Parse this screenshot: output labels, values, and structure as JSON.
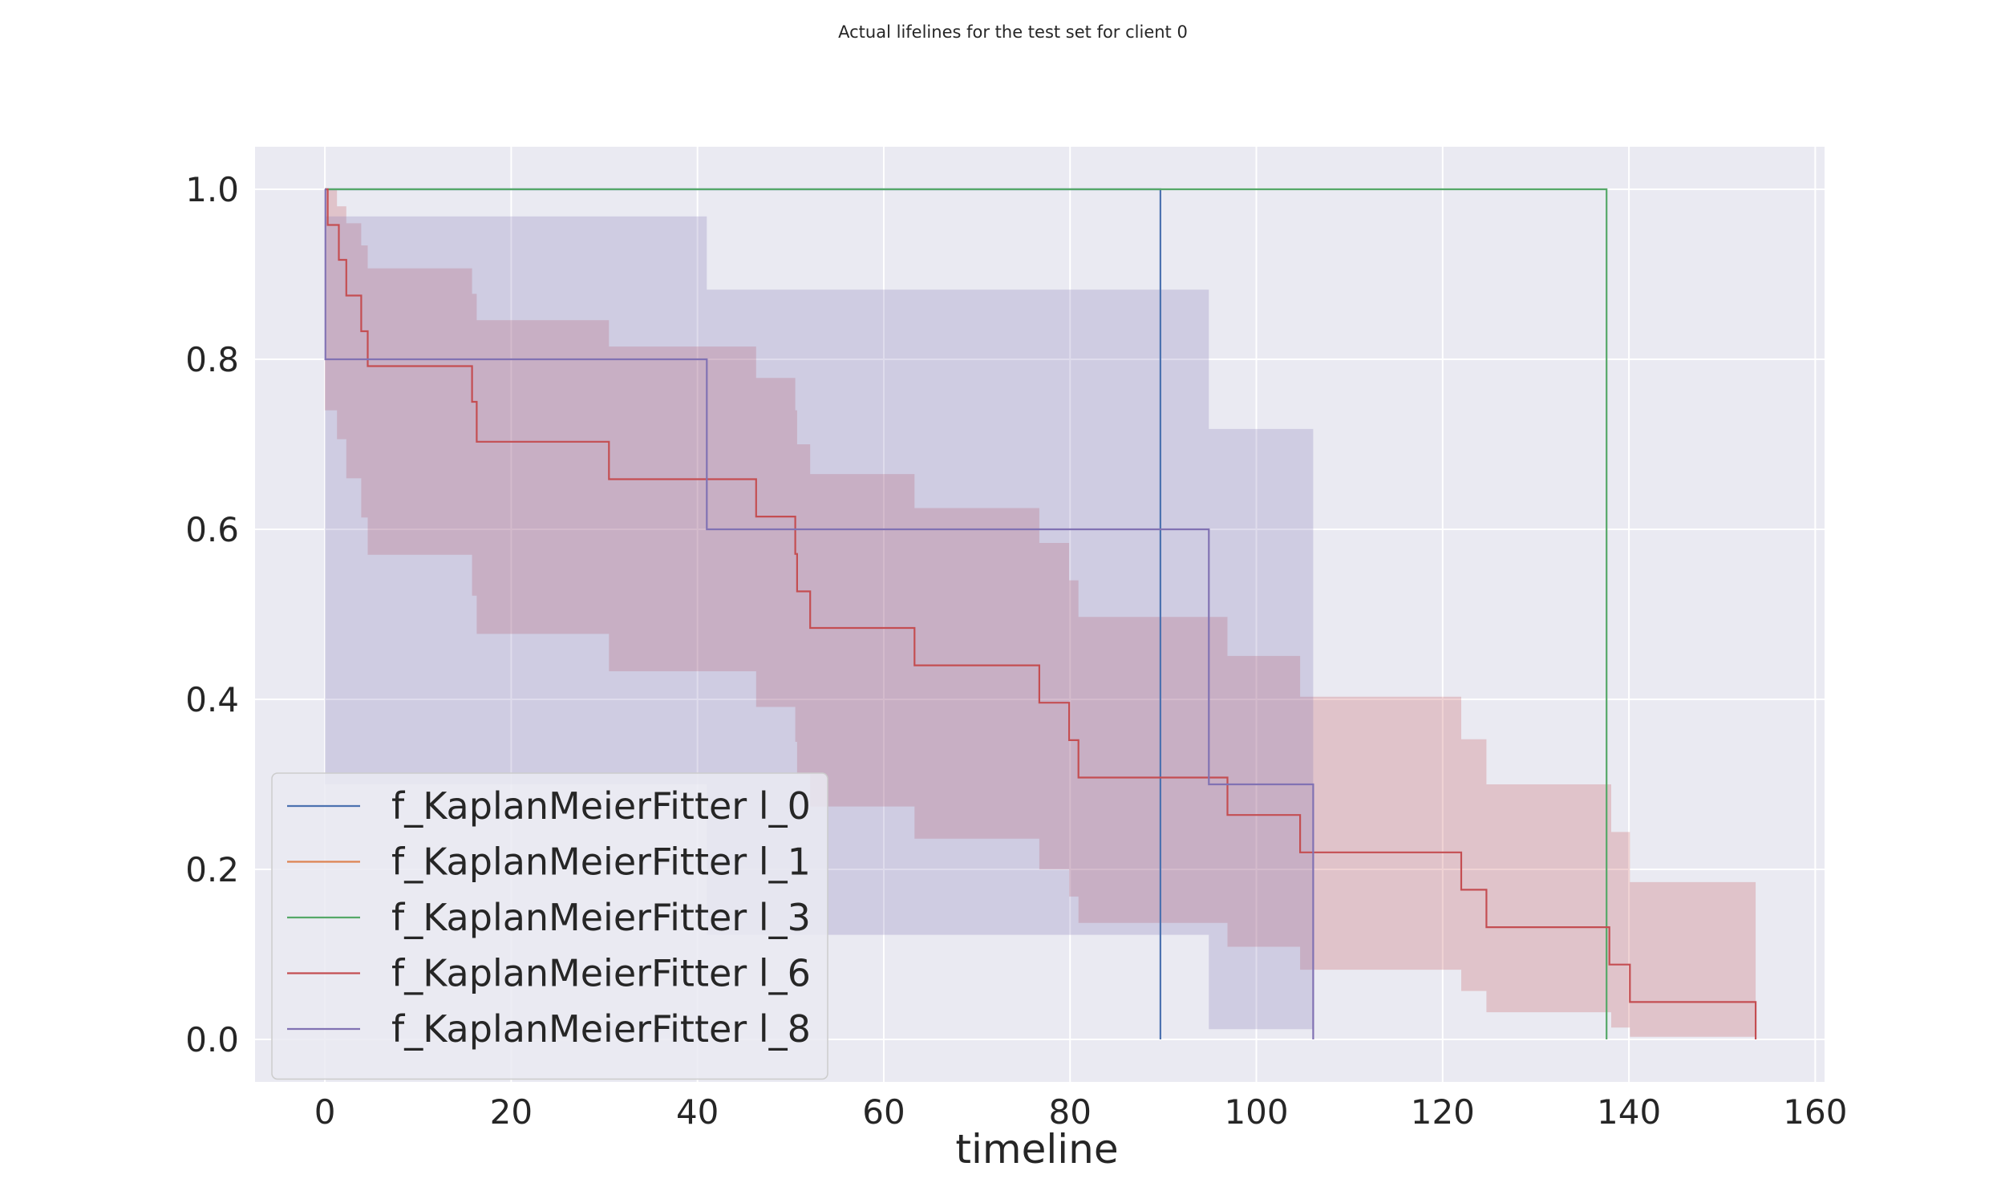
{
  "chart_data": {
    "type": "line",
    "title": "Actual lifelines for the test set for client 0",
    "xlabel": "timeline",
    "ylabel": "",
    "xlim": [
      -7.5,
      161
    ],
    "ylim": [
      -0.05,
      1.05
    ],
    "x_ticks": [
      0,
      20,
      40,
      60,
      80,
      100,
      120,
      140,
      160
    ],
    "y_ticks": [
      0.0,
      0.2,
      0.4,
      0.6,
      0.8,
      1.0
    ],
    "grid": true,
    "background": "#eaeaf2",
    "legend_position": "lower-left",
    "series": [
      {
        "name": "f_KaplanMeierFitter l_0",
        "color": "#4c72b0",
        "steps": [
          [
            0,
            1.0
          ],
          [
            89.7,
            1.0
          ],
          [
            89.7,
            0.0
          ]
        ],
        "ci": []
      },
      {
        "name": "f_KaplanMeierFitter l_1",
        "color": "#dd8452",
        "steps": [],
        "ci": []
      },
      {
        "name": "f_KaplanMeierFitter l_3",
        "color": "#55a868",
        "steps": [
          [
            0,
            1.0
          ],
          [
            137.6,
            1.0
          ],
          [
            137.6,
            0.0
          ]
        ],
        "ci": []
      },
      {
        "name": "f_KaplanMeierFitter l_6",
        "color": "#c44e52",
        "steps": [
          [
            0,
            1.0
          ],
          [
            0.3,
            0.958
          ],
          [
            1.5,
            0.917
          ],
          [
            2.3,
            0.875
          ],
          [
            3.9,
            0.833
          ],
          [
            4.6,
            0.792
          ],
          [
            15.8,
            0.75
          ],
          [
            16.3,
            0.703
          ],
          [
            30.5,
            0.659
          ],
          [
            46.3,
            0.615
          ],
          [
            50.5,
            0.571
          ],
          [
            50.7,
            0.527
          ],
          [
            52.1,
            0.484
          ],
          [
            63.3,
            0.44
          ],
          [
            76.7,
            0.396
          ],
          [
            79.9,
            0.352
          ],
          [
            80.9,
            0.308
          ],
          [
            96.9,
            0.264
          ],
          [
            104.7,
            0.22
          ],
          [
            122.0,
            0.176
          ],
          [
            124.7,
            0.132
          ],
          [
            137.9,
            0.088
          ],
          [
            140.1,
            0.044
          ],
          [
            153.6,
            0.044
          ],
          [
            153.6,
            0.0
          ]
        ],
        "ci": [
          [
            0,
            1.0,
            0.74
          ],
          [
            1.3,
            0.98,
            0.706
          ],
          [
            2.3,
            0.96,
            0.66
          ],
          [
            3.9,
            0.934,
            0.614
          ],
          [
            4.6,
            0.907,
            0.57
          ],
          [
            15.8,
            0.877,
            0.522
          ],
          [
            16.3,
            0.846,
            0.477
          ],
          [
            30.5,
            0.815,
            0.433
          ],
          [
            46.3,
            0.778,
            0.391
          ],
          [
            50.5,
            0.74,
            0.35
          ],
          [
            50.7,
            0.7,
            0.312
          ],
          [
            52.1,
            0.665,
            0.274
          ],
          [
            63.3,
            0.625,
            0.236
          ],
          [
            76.7,
            0.584,
            0.2
          ],
          [
            79.9,
            0.54,
            0.168
          ],
          [
            80.9,
            0.497,
            0.137
          ],
          [
            96.9,
            0.451,
            0.109
          ],
          [
            104.7,
            0.403,
            0.082
          ],
          [
            122.0,
            0.353,
            0.057
          ],
          [
            124.7,
            0.3,
            0.032
          ],
          [
            138.1,
            0.244,
            0.014
          ],
          [
            140.1,
            0.185,
            0.003
          ],
          [
            153.6,
            0.185,
            0.003
          ]
        ]
      },
      {
        "name": "f_KaplanMeierFitter l_8",
        "color": "#8172b3",
        "steps": [
          [
            0,
            1.0
          ],
          [
            0.05,
            0.8
          ],
          [
            41.0,
            0.6
          ],
          [
            94.9,
            0.3
          ],
          [
            106.1,
            0.3
          ],
          [
            106.1,
            0.0
          ]
        ],
        "ci": [
          [
            0,
            1.0,
            0.3
          ],
          [
            0.05,
            0.968,
            0.3
          ],
          [
            41.0,
            0.882,
            0.123
          ],
          [
            94.9,
            0.718,
            0.012
          ],
          [
            106.1,
            0.718,
            0.012
          ]
        ]
      }
    ]
  }
}
